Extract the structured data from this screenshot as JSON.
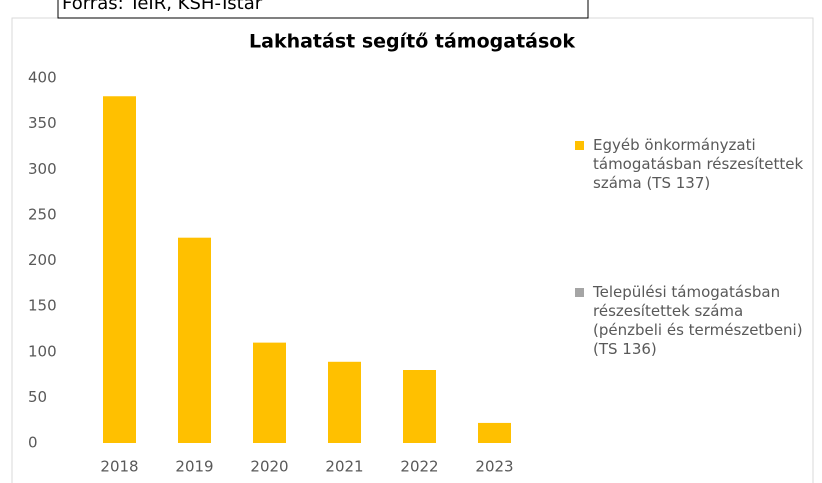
{
  "header_note": "Forrás: TeIR, KSH-Tstar",
  "chart_data": {
    "type": "bar",
    "title": "Lakhatást segítő támogatások",
    "categories": [
      "2018",
      "2019",
      "2020",
      "2021",
      "2022",
      "2023"
    ],
    "series": [
      {
        "name": "Egyéb önkormányzati támogatásban részesítettek száma (TS 137)",
        "color": "#ffc000",
        "values": [
          380,
          225,
          110,
          89,
          80,
          22
        ]
      },
      {
        "name": "Települési támogatásban részesítettek száma (pénzbeli és természetbeni) (TS 136)",
        "color": "#a5a5a5",
        "values": [
          0,
          0,
          0,
          0,
          0,
          0
        ]
      }
    ],
    "ylim": [
      0,
      400
    ],
    "yticks": [
      0,
      50,
      100,
      150,
      200,
      250,
      300,
      350,
      400
    ],
    "grid": false,
    "legend": "right"
  }
}
